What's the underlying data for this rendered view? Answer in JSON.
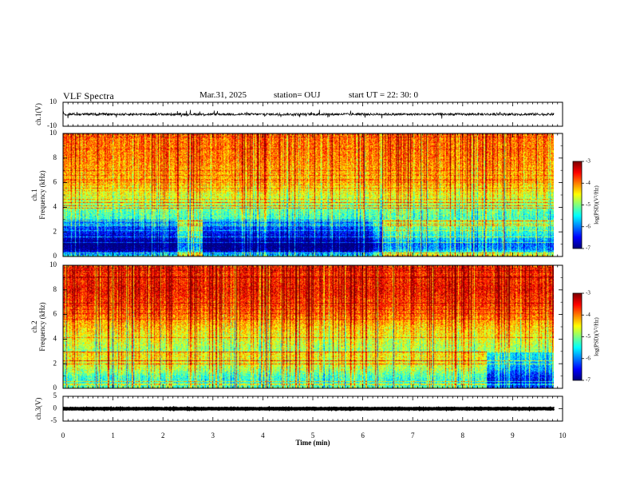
{
  "header": {
    "title": "VLF Spectra",
    "date": "Mar.31, 2025",
    "station": "station= OUJ",
    "start_ut": "start  UT =  22: 30: 0"
  },
  "colors": {
    "background": "#ffffff",
    "axes": "#000000",
    "waveform": "#000000"
  },
  "colorbar": {
    "label": "log(PSD)(V²/Hz)",
    "ticks": [
      "-3",
      "-4",
      "-5",
      "-6",
      "-7"
    ],
    "range": [
      -7,
      -3
    ]
  },
  "chart_data": [
    {
      "type": "line",
      "name": "waveform-ch1",
      "ylabel": "ch.1(V)",
      "ylim": [
        -10,
        10
      ],
      "ytick_labels": [
        "10",
        "-10"
      ],
      "x_range_min": [
        0,
        9.83
      ],
      "baseline_v": 0,
      "noise_amplitude_v": 2,
      "grid": false
    },
    {
      "type": "heatmap",
      "name": "spectrogram-ch1",
      "ylabel_channel": "ch.1",
      "ylabel": "Frequency  (kHz)",
      "ylim": [
        0,
        10
      ],
      "ytick_labels": [
        "10",
        "8",
        "6",
        "4",
        "2",
        "0"
      ],
      "x_range_min": [
        0,
        9.83
      ],
      "value_range": [
        -7,
        -3
      ],
      "profile_by_freq_khz": {
        "freq": [
          0,
          0.5,
          1,
          1.5,
          2,
          3,
          4,
          5,
          6,
          8,
          10
        ],
        "log_psd": [
          -4.8,
          -6.4,
          -6.6,
          -6.1,
          -5.8,
          -5.3,
          -5.0,
          -4.6,
          -4.3,
          -4.0,
          -3.9
        ]
      },
      "quiet_intervals_min": [
        [
          0,
          2.3
        ],
        [
          2.8,
          6.2
        ]
      ],
      "bright_intervals_min": [
        [
          2.3,
          2.8
        ],
        [
          6.4,
          9.83
        ]
      ]
    },
    {
      "type": "heatmap",
      "name": "spectrogram-ch2",
      "ylabel_channel": "ch.2",
      "ylabel": "Frequency  (kHz)",
      "ylim": [
        0,
        10
      ],
      "ytick_labels": [
        "10",
        "8",
        "6",
        "4",
        "2",
        "0"
      ],
      "x_range_min": [
        0,
        9.83
      ],
      "value_range": [
        -7,
        -3
      ],
      "profile_by_freq_khz": {
        "freq": [
          0,
          0.5,
          1,
          1.5,
          2,
          3,
          4,
          5,
          6,
          8,
          10
        ],
        "log_psd": [
          -5.6,
          -5.9,
          -5.7,
          -5.3,
          -5.1,
          -4.9,
          -4.6,
          -4.3,
          -3.9,
          -3.5,
          -3.7
        ]
      },
      "quiet_intervals_min": [
        [
          8.5,
          9.83
        ]
      ],
      "bright_intervals_min": [
        [
          0,
          8.5
        ]
      ]
    },
    {
      "type": "line",
      "name": "waveform-ch3",
      "ylabel": "ch.3(V)",
      "ylim": [
        -5,
        5
      ],
      "ytick_labels": [
        "5",
        "0",
        "-5"
      ],
      "x_range_min": [
        0,
        9.83
      ],
      "baseline_v": 0,
      "noise_amplitude_v": 0.2,
      "grid": false
    }
  ],
  "x_axis": {
    "label": "Time  (min)",
    "ticks": [
      "0",
      "1",
      "2",
      "3",
      "4",
      "5",
      "6",
      "7",
      "8",
      "9",
      "10"
    ],
    "range": [
      0,
      10
    ]
  }
}
